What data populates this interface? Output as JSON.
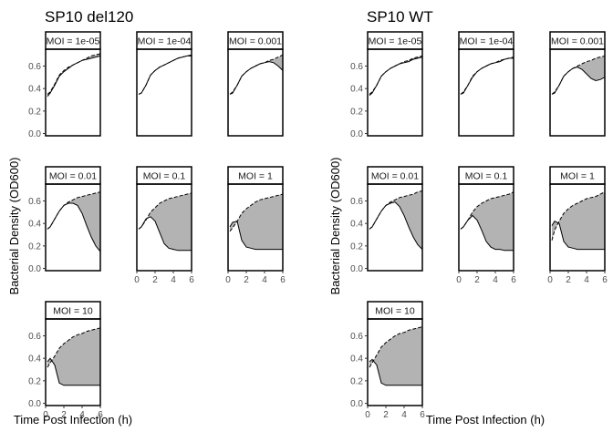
{
  "chart_data": [
    {
      "type": "area",
      "title": "SP10 del120",
      "xlabel": "Time Post Infection (h)",
      "ylabel": "Bacterial Density (OD600)",
      "xlim": [
        0,
        6
      ],
      "ylim": [
        -0.02,
        0.75
      ],
      "x_ticks": [
        0,
        2,
        4,
        6
      ],
      "y_ticks": [
        0.0,
        0.2,
        0.4,
        0.6
      ],
      "grid": false,
      "series_style": {
        "control": "dashed",
        "infected": "solid",
        "fill": "#b3b3b3"
      },
      "panels": [
        {
          "label": "MOI = 1e-05",
          "x": [
            0.2,
            0.5,
            1,
            1.5,
            2,
            2.5,
            3,
            3.5,
            4,
            4.5,
            5,
            5.5,
            6
          ],
          "control": [
            0.35,
            0.37,
            0.44,
            0.52,
            0.56,
            0.59,
            0.61,
            0.63,
            0.65,
            0.67,
            0.69,
            0.7,
            0.71
          ],
          "infected": [
            0.33,
            0.36,
            0.43,
            0.51,
            0.55,
            0.58,
            0.61,
            0.63,
            0.65,
            0.66,
            0.67,
            0.68,
            0.69
          ]
        },
        {
          "label": "MOI = 1e-04",
          "x": [
            0.2,
            0.5,
            1,
            1.5,
            2,
            2.5,
            3,
            3.5,
            4,
            4.5,
            5,
            5.5,
            6
          ],
          "control": [
            0.35,
            0.36,
            0.43,
            0.52,
            0.56,
            0.59,
            0.61,
            0.63,
            0.65,
            0.67,
            0.68,
            0.69,
            0.69
          ],
          "infected": [
            0.35,
            0.36,
            0.43,
            0.52,
            0.56,
            0.59,
            0.61,
            0.63,
            0.65,
            0.67,
            0.68,
            0.69,
            0.7
          ]
        },
        {
          "label": "MOI = 0.001",
          "x": [
            0.2,
            0.5,
            1,
            1.5,
            2,
            2.5,
            3,
            3.5,
            4,
            4.5,
            5,
            5.5,
            6
          ],
          "control": [
            0.35,
            0.37,
            0.43,
            0.51,
            0.55,
            0.58,
            0.6,
            0.62,
            0.63,
            0.65,
            0.66,
            0.68,
            0.7
          ],
          "infected": [
            0.35,
            0.36,
            0.43,
            0.51,
            0.55,
            0.58,
            0.6,
            0.62,
            0.63,
            0.64,
            0.63,
            0.6,
            0.56
          ]
        },
        {
          "label": "MOI = 0.01",
          "x": [
            0.2,
            0.5,
            1,
            1.5,
            2,
            2.5,
            3,
            3.5,
            4,
            4.5,
            5,
            5.5,
            6
          ],
          "control": [
            0.35,
            0.37,
            0.44,
            0.51,
            0.56,
            0.59,
            0.61,
            0.63,
            0.64,
            0.65,
            0.66,
            0.67,
            0.68
          ],
          "infected": [
            0.35,
            0.37,
            0.44,
            0.51,
            0.56,
            0.58,
            0.58,
            0.56,
            0.49,
            0.38,
            0.28,
            0.2,
            0.15
          ]
        },
        {
          "label": "MOI = 0.1",
          "x": [
            0.2,
            0.5,
            1,
            1.5,
            2,
            2.5,
            3,
            3.5,
            4,
            4.5,
            5,
            5.5,
            6
          ],
          "control": [
            0.35,
            0.37,
            0.43,
            0.5,
            0.54,
            0.58,
            0.6,
            0.62,
            0.63,
            0.64,
            0.65,
            0.66,
            0.67
          ],
          "infected": [
            0.35,
            0.37,
            0.44,
            0.46,
            0.42,
            0.32,
            0.22,
            0.18,
            0.17,
            0.16,
            0.16,
            0.16,
            0.16
          ]
        },
        {
          "label": "MOI = 1",
          "x": [
            0.2,
            0.5,
            1,
            1.5,
            2,
            2.5,
            3,
            3.5,
            4,
            4.5,
            5,
            5.5,
            6
          ],
          "control": [
            0.33,
            0.36,
            0.42,
            0.49,
            0.53,
            0.56,
            0.59,
            0.61,
            0.62,
            0.63,
            0.64,
            0.65,
            0.66
          ],
          "infected": [
            0.37,
            0.41,
            0.42,
            0.25,
            0.19,
            0.18,
            0.17,
            0.17,
            0.17,
            0.17,
            0.17,
            0.17,
            0.17
          ]
        },
        {
          "label": "MOI = 10",
          "x": [
            0.2,
            0.5,
            1,
            1.5,
            2,
            2.5,
            3,
            3.5,
            4,
            4.5,
            5,
            5.5,
            6
          ],
          "control": [
            0.32,
            0.36,
            0.42,
            0.49,
            0.53,
            0.56,
            0.59,
            0.61,
            0.62,
            0.64,
            0.65,
            0.66,
            0.67
          ],
          "infected": [
            0.37,
            0.4,
            0.34,
            0.18,
            0.16,
            0.16,
            0.16,
            0.16,
            0.16,
            0.16,
            0.16,
            0.16,
            0.16
          ]
        }
      ]
    },
    {
      "type": "area",
      "title": "SP10 WT",
      "xlabel": "Time Post Infection (h)",
      "ylabel": "Bacterial Density (OD600)",
      "xlim": [
        0,
        6
      ],
      "ylim": [
        -0.02,
        0.75
      ],
      "x_ticks": [
        0,
        2,
        4,
        6
      ],
      "y_ticks": [
        0.0,
        0.2,
        0.4,
        0.6
      ],
      "grid": false,
      "series_style": {
        "control": "dashed",
        "infected": "solid",
        "fill": "#b3b3b3"
      },
      "panels": [
        {
          "label": "MOI = 1e-05",
          "x": [
            0.2,
            0.5,
            1,
            1.5,
            2,
            2.5,
            3,
            3.5,
            4,
            4.5,
            5,
            5.5,
            6
          ],
          "control": [
            0.35,
            0.37,
            0.43,
            0.51,
            0.55,
            0.58,
            0.6,
            0.62,
            0.64,
            0.65,
            0.67,
            0.68,
            0.69
          ],
          "infected": [
            0.34,
            0.36,
            0.43,
            0.51,
            0.55,
            0.58,
            0.6,
            0.62,
            0.63,
            0.64,
            0.66,
            0.67,
            0.68
          ]
        },
        {
          "label": "MOI = 1e-04",
          "x": [
            0.2,
            0.5,
            1,
            1.5,
            2,
            2.5,
            3,
            3.5,
            4,
            4.5,
            5,
            5.5,
            6
          ],
          "control": [
            0.35,
            0.37,
            0.43,
            0.51,
            0.55,
            0.58,
            0.6,
            0.62,
            0.63,
            0.65,
            0.66,
            0.67,
            0.68
          ],
          "infected": [
            0.35,
            0.36,
            0.43,
            0.5,
            0.55,
            0.58,
            0.6,
            0.62,
            0.63,
            0.64,
            0.66,
            0.67,
            0.67
          ]
        },
        {
          "label": "MOI = 0.001",
          "x": [
            0.2,
            0.5,
            1,
            1.5,
            2,
            2.5,
            3,
            3.5,
            4,
            4.5,
            5,
            5.5,
            6
          ],
          "control": [
            0.35,
            0.37,
            0.43,
            0.51,
            0.55,
            0.58,
            0.6,
            0.62,
            0.64,
            0.65,
            0.67,
            0.68,
            0.69
          ],
          "infected": [
            0.35,
            0.36,
            0.43,
            0.51,
            0.55,
            0.58,
            0.59,
            0.57,
            0.53,
            0.49,
            0.47,
            0.48,
            0.5
          ]
        },
        {
          "label": "MOI = 0.01",
          "x": [
            0.2,
            0.5,
            1,
            1.5,
            2,
            2.5,
            3,
            3.5,
            4,
            4.5,
            5,
            5.5,
            6
          ],
          "control": [
            0.35,
            0.37,
            0.44,
            0.51,
            0.56,
            0.59,
            0.61,
            0.63,
            0.64,
            0.65,
            0.66,
            0.68,
            0.69
          ],
          "infected": [
            0.35,
            0.37,
            0.44,
            0.51,
            0.56,
            0.58,
            0.59,
            0.55,
            0.47,
            0.37,
            0.28,
            0.21,
            0.17
          ]
        },
        {
          "label": "MOI = 0.1",
          "x": [
            0.2,
            0.5,
            1,
            1.5,
            2,
            2.5,
            3,
            3.5,
            4,
            4.5,
            5,
            5.5,
            6
          ],
          "control": [
            0.35,
            0.37,
            0.43,
            0.5,
            0.55,
            0.58,
            0.6,
            0.62,
            0.63,
            0.64,
            0.65,
            0.66,
            0.68
          ],
          "infected": [
            0.35,
            0.37,
            0.43,
            0.47,
            0.43,
            0.34,
            0.24,
            0.19,
            0.17,
            0.17,
            0.16,
            0.16,
            0.16
          ]
        },
        {
          "label": "MOI = 1",
          "x": [
            0.2,
            0.5,
            1,
            1.5,
            2,
            2.5,
            3,
            3.5,
            4,
            4.5,
            5,
            5.5,
            6
          ],
          "control": [
            0.25,
            0.34,
            0.42,
            0.49,
            0.53,
            0.56,
            0.58,
            0.6,
            0.62,
            0.63,
            0.64,
            0.66,
            0.68
          ],
          "infected": [
            0.38,
            0.42,
            0.4,
            0.24,
            0.19,
            0.18,
            0.17,
            0.17,
            0.17,
            0.17,
            0.17,
            0.17,
            0.17
          ]
        },
        {
          "label": "MOI = 10",
          "x": [
            0.2,
            0.5,
            1,
            1.5,
            2,
            2.5,
            3,
            3.5,
            4,
            4.5,
            5,
            5.5,
            6
          ],
          "control": [
            0.32,
            0.36,
            0.43,
            0.5,
            0.54,
            0.57,
            0.6,
            0.62,
            0.63,
            0.65,
            0.66,
            0.67,
            0.68
          ],
          "infected": [
            0.37,
            0.39,
            0.34,
            0.18,
            0.16,
            0.16,
            0.16,
            0.16,
            0.16,
            0.16,
            0.16,
            0.16,
            0.16
          ]
        }
      ]
    }
  ]
}
